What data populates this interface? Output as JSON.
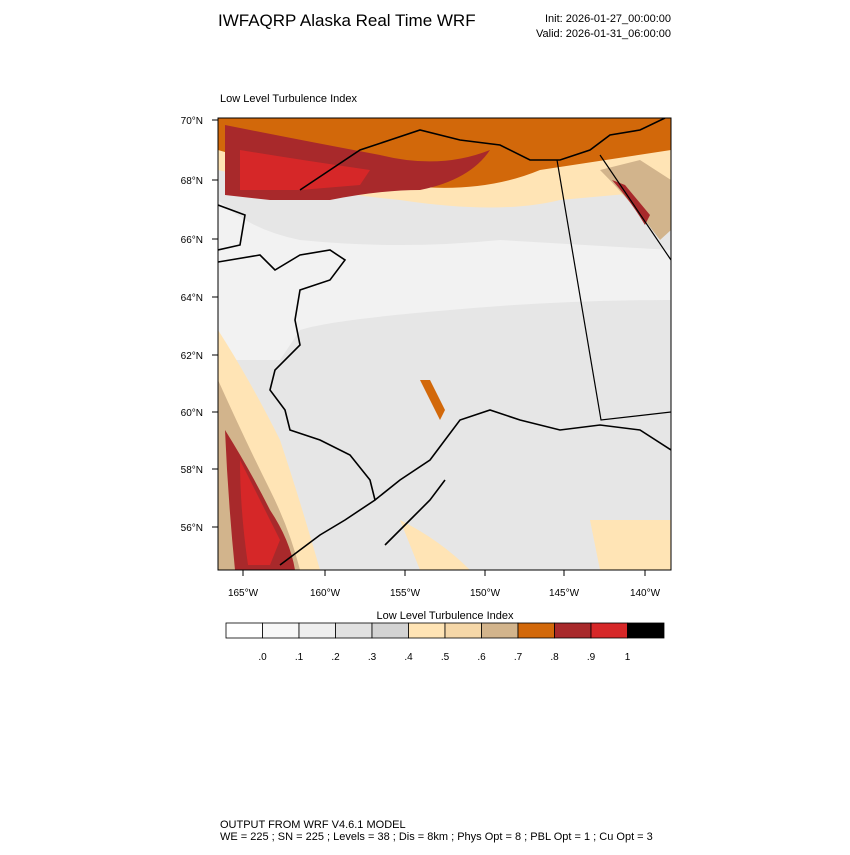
{
  "header": {
    "title": "IWFAQRP Alaska Real Time WRF",
    "init": "Init: 2026-01-27_00:00:00",
    "valid": "Valid: 2026-01-31_06:00:00"
  },
  "map": {
    "title": "Low Level Turbulence Index",
    "lat_labels": [
      "70°N",
      "68°N",
      "66°N",
      "64°N",
      "62°N",
      "60°N",
      "58°N",
      "56°N"
    ],
    "lon_labels": [
      "165°W",
      "160°W",
      "155°W",
      "150°W",
      "145°W",
      "140°W"
    ]
  },
  "colorbar": {
    "title": "Low Level Turbulence Index",
    "colors": [
      "#ffffff",
      "#f7f7f7",
      "#eeeeee",
      "#e1e1e1",
      "#d3d3d3",
      "#ffe4b5",
      "#f5d7a8",
      "#d2b48c",
      "#d2680a",
      "#a8292b",
      "#d62728",
      "#000000"
    ],
    "labels": [
      ".0",
      ".1",
      ".2",
      ".3",
      ".4",
      ".5",
      ".6",
      ".7",
      ".8",
      ".9",
      "1"
    ]
  },
  "footer": {
    "line1": "OUTPUT FROM WRF V4.6.1 MODEL",
    "line2": "WE = 225 ; SN = 225 ; Levels = 38 ; Dis = 8km ; Phys Opt = 8 ; PBL Opt = 1 ; Cu Opt = 3"
  }
}
